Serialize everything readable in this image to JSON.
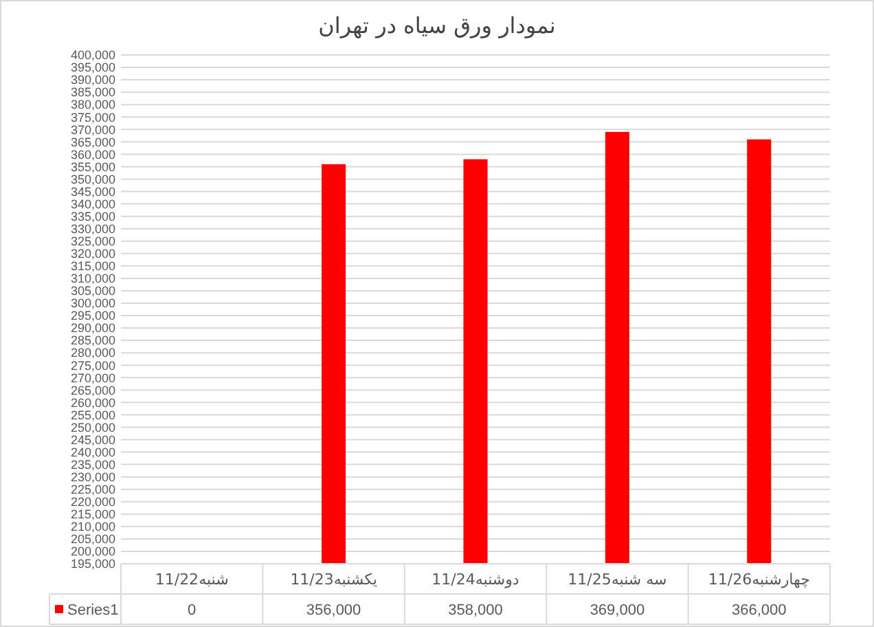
{
  "chart_data": {
    "type": "bar",
    "title": "نمودار ورق سیاه در تهران",
    "categories": [
      "شنبه11/22",
      "یکشنبه11/23",
      "دوشنبه11/24",
      "سه شنبه11/25",
      "چهارشنبه11/26"
    ],
    "series": [
      {
        "name": "Series1",
        "color": "#ff0000",
        "values": [
          null,
          356000,
          358000,
          369000,
          366000
        ],
        "value_labels": [
          "0",
          "356,000",
          "358,000",
          "369,000",
          "366,000"
        ]
      }
    ],
    "ylim": [
      195000,
      400000
    ],
    "yticks": [
      {
        "value": 195000,
        "label": "195,000"
      },
      {
        "value": 200000,
        "label": "200,000"
      },
      {
        "value": 205000,
        "label": "205,000"
      },
      {
        "value": 210000,
        "label": "210,000"
      },
      {
        "value": 215000,
        "label": "215,000"
      },
      {
        "value": 220000,
        "label": "220,000"
      },
      {
        "value": 225000,
        "label": "225,000"
      },
      {
        "value": 230000,
        "label": "230,000"
      },
      {
        "value": 235000,
        "label": "235,000"
      },
      {
        "value": 240000,
        "label": "240,000"
      },
      {
        "value": 245000,
        "label": "245,000"
      },
      {
        "value": 250000,
        "label": "250,000"
      },
      {
        "value": 255000,
        "label": "255,000"
      },
      {
        "value": 260000,
        "label": "260,000"
      },
      {
        "value": 265000,
        "label": "265,000"
      },
      {
        "value": 270000,
        "label": "270,000"
      },
      {
        "value": 275000,
        "label": "275,000"
      },
      {
        "value": 280000,
        "label": "280,000"
      },
      {
        "value": 285000,
        "label": "285,000"
      },
      {
        "value": 290000,
        "label": "290,000"
      },
      {
        "value": 295000,
        "label": "295,000"
      },
      {
        "value": 300000,
        "label": "300,000"
      },
      {
        "value": 305000,
        "label": "305,000"
      },
      {
        "value": 310000,
        "label": "310,000"
      },
      {
        "value": 315000,
        "label": "315,000"
      },
      {
        "value": 320000,
        "label": "320,000"
      },
      {
        "value": 325000,
        "label": "325,000"
      },
      {
        "value": 330000,
        "label": "330,000"
      },
      {
        "value": 335000,
        "label": "335,000"
      },
      {
        "value": 340000,
        "label": "340,000"
      },
      {
        "value": 345000,
        "label": "345,000"
      },
      {
        "value": 350000,
        "label": "350,000"
      },
      {
        "value": 355000,
        "label": "355,000"
      },
      {
        "value": 360000,
        "label": "360,000"
      },
      {
        "value": 365000,
        "label": "365,000"
      },
      {
        "value": 370000,
        "label": "370,000"
      },
      {
        "value": 375000,
        "label": "375,000"
      },
      {
        "value": 380000,
        "label": "380,000"
      },
      {
        "value": 385000,
        "label": "385,000"
      },
      {
        "value": 390000,
        "label": "390,000"
      },
      {
        "value": 395000,
        "label": "395,000"
      },
      {
        "value": 400000,
        "label": "400,000"
      }
    ],
    "grid": "y",
    "legend": "bottom"
  }
}
